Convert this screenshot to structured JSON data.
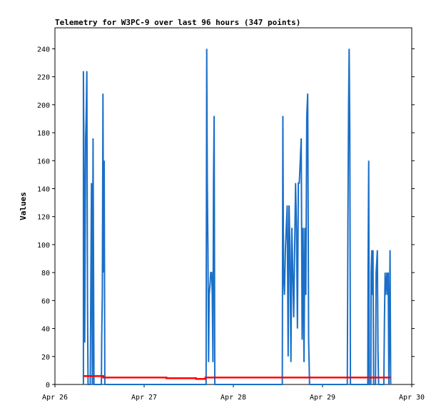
{
  "chart_data": {
    "type": "line",
    "title": "Telemetry for W3PC-9 over last 96 hours (347 points)",
    "xlabel": "",
    "ylabel": "Values",
    "xlim": [
      "2025-04-26T00:00",
      "2025-04-30T00:00"
    ],
    "x_tick_labels": [
      "Apr 26",
      "Apr 27",
      "Apr 28",
      "Apr 29",
      "Apr 30"
    ],
    "ylim": [
      0,
      255
    ],
    "y_ticks": [
      0,
      20,
      40,
      60,
      80,
      100,
      120,
      140,
      160,
      180,
      200,
      220,
      240
    ],
    "grid": false,
    "legend": "none",
    "series": [
      {
        "color": "#1a6fc8",
        "points": [
          [
            "2025-04-26T07:40",
            0
          ],
          [
            "2025-04-26T07:40",
            224
          ],
          [
            "2025-04-26T07:50",
            145
          ],
          [
            "2025-04-26T08:00",
            30
          ],
          [
            "2025-04-26T08:15",
            176
          ],
          [
            "2025-04-26T08:25",
            192
          ],
          [
            "2025-04-26T08:35",
            224
          ],
          [
            "2025-04-26T08:45",
            60
          ],
          [
            "2025-04-26T08:55",
            0
          ],
          [
            "2025-04-26T09:30",
            0
          ],
          [
            "2025-04-26T09:40",
            72
          ],
          [
            "2025-04-26T09:50",
            144
          ],
          [
            "2025-04-26T10:05",
            0
          ],
          [
            "2025-04-26T10:15",
            176
          ],
          [
            "2025-04-26T10:30",
            0
          ],
          [
            "2025-04-26T12:30",
            0
          ],
          [
            "2025-04-26T12:35",
            32
          ],
          [
            "2025-04-26T12:45",
            64
          ],
          [
            "2025-04-26T12:55",
            208
          ],
          [
            "2025-04-26T13:05",
            80
          ],
          [
            "2025-04-26T13:15",
            160
          ],
          [
            "2025-04-26T13:25",
            0
          ],
          [
            "2025-04-27T16:40",
            0
          ],
          [
            "2025-04-27T16:50",
            240
          ],
          [
            "2025-04-27T17:00",
            144
          ],
          [
            "2025-04-27T17:10",
            96
          ],
          [
            "2025-04-27T17:20",
            16
          ],
          [
            "2025-04-27T17:30",
            64
          ],
          [
            "2025-04-27T17:45",
            72
          ],
          [
            "2025-04-27T17:55",
            80
          ],
          [
            "2025-04-27T18:10",
            80
          ],
          [
            "2025-04-27T18:20",
            64
          ],
          [
            "2025-04-27T18:30",
            16
          ],
          [
            "2025-04-27T18:40",
            144
          ],
          [
            "2025-04-27T18:50",
            192
          ],
          [
            "2025-04-27T19:00",
            0
          ],
          [
            "2025-04-28T13:10",
            0
          ],
          [
            "2025-04-28T13:20",
            192
          ],
          [
            "2025-04-28T13:30",
            80
          ],
          [
            "2025-04-28T13:45",
            64
          ],
          [
            "2025-04-28T14:00",
            96
          ],
          [
            "2025-04-28T14:15",
            112
          ],
          [
            "2025-04-28T14:30",
            128
          ],
          [
            "2025-04-28T14:45",
            20
          ],
          [
            "2025-04-28T15:00",
            128
          ],
          [
            "2025-04-28T15:15",
            96
          ],
          [
            "2025-04-28T15:30",
            16
          ],
          [
            "2025-04-28T15:45",
            112
          ],
          [
            "2025-04-28T16:00",
            80
          ],
          [
            "2025-04-28T16:15",
            48
          ],
          [
            "2025-04-28T16:30",
            96
          ],
          [
            "2025-04-28T16:45",
            144
          ],
          [
            "2025-04-28T17:00",
            112
          ],
          [
            "2025-04-28T17:15",
            40
          ],
          [
            "2025-04-28T17:30",
            144
          ],
          [
            "2025-04-28T17:45",
            144
          ],
          [
            "2025-04-28T18:00",
            160
          ],
          [
            "2025-04-28T18:15",
            176
          ],
          [
            "2025-04-28T18:30",
            32
          ],
          [
            "2025-04-28T18:45",
            112
          ],
          [
            "2025-04-28T19:00",
            16
          ],
          [
            "2025-04-28T19:15",
            112
          ],
          [
            "2025-04-28T19:30",
            64
          ],
          [
            "2025-04-28T19:45",
            192
          ],
          [
            "2025-04-28T20:00",
            208
          ],
          [
            "2025-04-28T20:15",
            32
          ],
          [
            "2025-04-28T20:30",
            0
          ],
          [
            "2025-04-29T06:40",
            0
          ],
          [
            "2025-04-29T06:45",
            64
          ],
          [
            "2025-04-29T06:50",
            120
          ],
          [
            "2025-04-29T07:00",
            200
          ],
          [
            "2025-04-29T07:10",
            240
          ],
          [
            "2025-04-29T07:20",
            180
          ],
          [
            "2025-04-29T07:30",
            0
          ],
          [
            "2025-04-29T12:10",
            0
          ],
          [
            "2025-04-29T12:15",
            80
          ],
          [
            "2025-04-29T12:25",
            160
          ],
          [
            "2025-04-29T12:35",
            0
          ],
          [
            "2025-04-29T13:00",
            0
          ],
          [
            "2025-04-29T13:05",
            80
          ],
          [
            "2025-04-29T13:15",
            96
          ],
          [
            "2025-04-29T13:25",
            64
          ],
          [
            "2025-04-29T13:35",
            96
          ],
          [
            "2025-04-29T13:45",
            0
          ],
          [
            "2025-04-29T14:15",
            0
          ],
          [
            "2025-04-29T14:25",
            80
          ],
          [
            "2025-04-29T14:35",
            88
          ],
          [
            "2025-04-29T14:45",
            96
          ],
          [
            "2025-04-29T14:55",
            24
          ],
          [
            "2025-04-29T15:05",
            0
          ],
          [
            "2025-04-29T16:30",
            0
          ],
          [
            "2025-04-29T16:40",
            48
          ],
          [
            "2025-04-29T16:50",
            80
          ],
          [
            "2025-04-29T17:00",
            64
          ],
          [
            "2025-04-29T17:10",
            72
          ],
          [
            "2025-04-29T17:20",
            80
          ],
          [
            "2025-04-29T17:30",
            64
          ],
          [
            "2025-04-29T17:40",
            80
          ],
          [
            "2025-04-29T17:50",
            0
          ],
          [
            "2025-04-29T18:00",
            48
          ],
          [
            "2025-04-29T18:10",
            96
          ],
          [
            "2025-04-29T18:20",
            0
          ]
        ]
      },
      {
        "color": "#ff0000",
        "points": [
          [
            "2025-04-26T07:40",
            6
          ],
          [
            "2025-04-26T13:00",
            6
          ],
          [
            "2025-04-26T13:00",
            5
          ],
          [
            "2025-04-27T06:00",
            5
          ],
          [
            "2025-04-27T06:00",
            4.5
          ],
          [
            "2025-04-27T14:00",
            4.5
          ],
          [
            "2025-04-27T14:00",
            4
          ],
          [
            "2025-04-27T16:30",
            4
          ],
          [
            "2025-04-27T16:30",
            5
          ],
          [
            "2025-04-29T18:20",
            5
          ]
        ]
      }
    ]
  }
}
